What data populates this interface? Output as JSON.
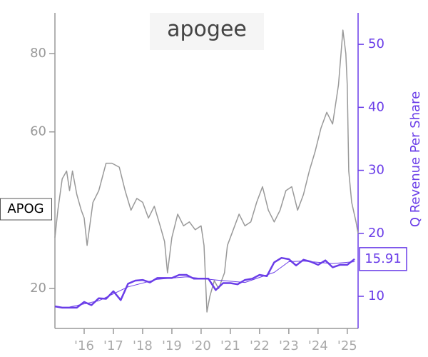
{
  "chart_data": {
    "type": "line",
    "logo": "apogee",
    "ticker": "APOG",
    "y2_label": "Q Revenue Per Share",
    "xlim": [
      2015.0,
      2025.37
    ],
    "xticks": [
      {
        "value": 2016,
        "label": "'16"
      },
      {
        "value": 2017,
        "label": "'17"
      },
      {
        "value": 2018,
        "label": "'18"
      },
      {
        "value": 2019,
        "label": "'19"
      },
      {
        "value": 2020,
        "label": "'20"
      },
      {
        "value": 2021,
        "label": "'21"
      },
      {
        "value": 2022,
        "label": "'22"
      },
      {
        "value": 2023,
        "label": "'23"
      },
      {
        "value": 2024,
        "label": "'24"
      },
      {
        "value": 2025,
        "label": "'25"
      }
    ],
    "ylim": [
      9.8,
      90.4
    ],
    "yticks": [
      20,
      60,
      80
    ],
    "y2lim": [
      4.9,
      55
    ],
    "y2ticks": [
      10,
      20,
      30,
      40,
      50
    ],
    "series": [
      {
        "color": "#999999",
        "axis": "y",
        "width": 1.5,
        "x": [
          2015.0,
          2015.1,
          2015.25,
          2015.4,
          2015.5,
          2015.6,
          2015.75,
          2015.9,
          2016.0,
          2016.1,
          2016.3,
          2016.5,
          2016.75,
          2016.95,
          2017.2,
          2017.4,
          2017.6,
          2017.8,
          2018.0,
          2018.2,
          2018.4,
          2018.6,
          2018.75,
          2018.85,
          2019.0,
          2019.2,
          2019.4,
          2019.6,
          2019.8,
          2020.0,
          2020.1,
          2020.2,
          2020.3,
          2020.45,
          2020.6,
          2020.8,
          2020.9,
          2021.1,
          2021.3,
          2021.5,
          2021.7,
          2021.9,
          2022.1,
          2022.3,
          2022.5,
          2022.7,
          2022.9,
          2023.1,
          2023.3,
          2023.5,
          2023.7,
          2023.9,
          2024.1,
          2024.3,
          2024.5,
          2024.7,
          2024.85,
          2024.95,
          2025.0,
          2025.05,
          2025.15,
          2025.3,
          2025.37
        ],
        "values": [
          33,
          40,
          48,
          50,
          45,
          50,
          44,
          40,
          38,
          31,
          42,
          45,
          52,
          52,
          51,
          45,
          40,
          43,
          42,
          38,
          41,
          36,
          32,
          24,
          33,
          39,
          36,
          37,
          35,
          36,
          31,
          14,
          18,
          22,
          20,
          24,
          31,
          35,
          39,
          36,
          37,
          42,
          46,
          40,
          37,
          40,
          45,
          46,
          40,
          44,
          50,
          55,
          61,
          65,
          62,
          72,
          86,
          80,
          72,
          50,
          42,
          37,
          34
        ]
      },
      {
        "color": "#6a3de8",
        "axis": "y2",
        "width": 2.5,
        "last_value_label": "15.91",
        "x": [
          2015.0,
          2015.25,
          2015.5,
          2015.75,
          2016.0,
          2016.25,
          2016.5,
          2016.75,
          2017.0,
          2017.25,
          2017.5,
          2017.75,
          2018.0,
          2018.25,
          2018.5,
          2018.75,
          2019.0,
          2019.25,
          2019.5,
          2019.75,
          2020.0,
          2020.25,
          2020.5,
          2020.75,
          2021.0,
          2021.25,
          2021.5,
          2021.75,
          2022.0,
          2022.25,
          2022.5,
          2022.75,
          2023.0,
          2023.25,
          2023.5,
          2023.75,
          2024.0,
          2024.25,
          2024.5,
          2024.75,
          2025.0,
          2025.25
        ],
        "values": [
          8.4,
          8.2,
          8.2,
          8.2,
          9.1,
          8.6,
          9.7,
          9.6,
          10.8,
          9.4,
          12.0,
          12.5,
          12.6,
          12.2,
          12.9,
          12.9,
          12.9,
          13.4,
          13.4,
          12.8,
          12.8,
          12.8,
          11.0,
          12.1,
          12.1,
          11.9,
          12.6,
          12.8,
          13.4,
          13.2,
          15.4,
          16.1,
          15.9,
          14.9,
          15.8,
          15.5,
          15.0,
          15.7,
          14.6,
          15.0,
          15.0,
          15.91
        ]
      },
      {
        "color": "#6a3de8",
        "axis": "y2",
        "width": 1,
        "x": [
          2015.5,
          2016.5,
          2017.5,
          2018.5,
          2019.5,
          2020.5,
          2021.5,
          2022.5,
          2023.0,
          2023.5,
          2024.0,
          2024.5,
          2025.25
        ],
        "values": [
          8.3,
          9.3,
          11.5,
          12.7,
          13.1,
          12.6,
          12.2,
          13.8,
          15.5,
          15.6,
          15.4,
          15.2,
          15.5
        ]
      }
    ]
  }
}
